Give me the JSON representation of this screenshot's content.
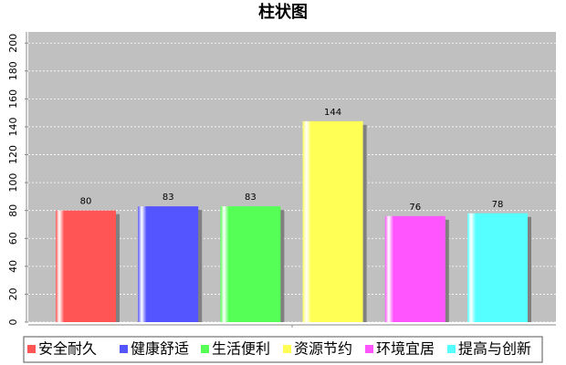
{
  "chart_data": {
    "type": "bar",
    "title": "柱状图",
    "categories": [
      "安全耐久",
      "健康舒适",
      "生活便利",
      "资源节约",
      "环境宜居",
      "提高与创新"
    ],
    "values": [
      80,
      83,
      83,
      144,
      76,
      78
    ],
    "colors": [
      "#ff5555",
      "#5555ff",
      "#55ff55",
      "#ffff55",
      "#ff55ff",
      "#55ffff"
    ],
    "ylim": [
      0,
      208
    ],
    "yticks": [
      0,
      20,
      40,
      60,
      80,
      100,
      120,
      140,
      160,
      180,
      200
    ],
    "grid": true
  }
}
